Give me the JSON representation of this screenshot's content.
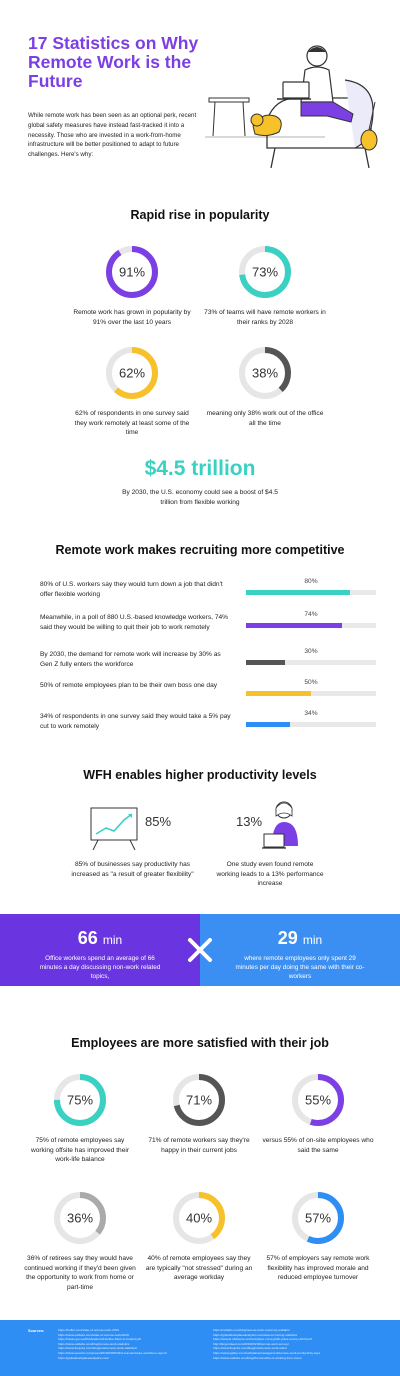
{
  "header": {
    "title": "17 Statistics on Why Remote Work is the Future",
    "intro": "While remote work has been seen as an optional perk, recent global safety measures have instead fast-tracked it into a necessity. Those who are invested in a work-from-home infrastructure will be better positioned to adapt to future challenges. Here's why:"
  },
  "colors": {
    "purple": "#7b3fe4",
    "teal": "#3ad1c2",
    "yellow": "#f6c12a",
    "gray": "#555555",
    "blue": "#2f8ef4",
    "track": "#e6e6e6"
  },
  "popularity": {
    "heading": "Rapid rise in popularity",
    "stats": [
      {
        "label": "91%",
        "value": 0.91,
        "color": "#7b3fe4",
        "caption": "Remote work has grown in popularity by 91% over the last 10 years"
      },
      {
        "label": "73%",
        "value": 0.73,
        "color": "#3ad1c2",
        "caption": "73% of teams will have remote workers in their ranks by 2028"
      },
      {
        "label": "62%",
        "value": 0.62,
        "color": "#f6c12a",
        "caption": "62% of respondents in one survey said they work remotely at least some of the time"
      },
      {
        "label": "38%",
        "value": 0.38,
        "color": "#555555",
        "caption": "meaning only 38% work out of the office all the time"
      }
    ],
    "big_number": "$4.5 trillion",
    "big_caption": "By 2030, the U.S. economy could see a boost of $4.5 trillion from flexible working"
  },
  "recruiting": {
    "heading": "Remote work makes recruiting more competitive",
    "bars": [
      {
        "text": "80% of U.S. workers say they would turn down a job that didn't offer flexible working",
        "label": "80%",
        "value": 0.8,
        "color": "#3ad1c2"
      },
      {
        "text": "Meanwhile, in a poll of 880 U.S.-based knowledge workers, 74% said they would be willing to quit their job to work remotely",
        "label": "74%",
        "value": 0.74,
        "color": "#7b3fe4"
      },
      {
        "text": "By 2030, the demand for remote work will increase by 30% as Gen Z fully enters the workforce",
        "label": "30%",
        "value": 0.3,
        "color": "#555555"
      },
      {
        "text": "50% of remote employees plan to be their own boss one day",
        "label": "50%",
        "value": 0.5,
        "color": "#f6c12a"
      },
      {
        "text": "34% of respondents in one survey said they would take a 5% pay cut to work remotely",
        "label": "34%",
        "value": 0.34,
        "color": "#2f8ef4"
      }
    ]
  },
  "productivity": {
    "heading": "WFH enables higher productivity levels",
    "left_pct": "85%",
    "left_caption": "85% of businesses say productivity has increased as \"a result of greater flexibility\"",
    "right_pct": "13%",
    "right_caption": "One study even found remote working leads to a 13% performance increase"
  },
  "band": {
    "left_num": "66",
    "left_unit": "min",
    "left_caption": "Office workers spend an average of 66 minutes a day discussing non-work related topics,",
    "right_num": "29",
    "right_unit": "min",
    "right_caption": "where remote employees only spent 29 minutes per day doing the same with their co-workers",
    "left_color": "#6a35e0",
    "right_color": "#3b8ff2"
  },
  "satisfaction": {
    "heading": "Employees are more satisfied with their job",
    "stats": [
      {
        "label": "75%",
        "value": 0.75,
        "color": "#3ad1c2",
        "caption": "75% of remote employees say working offsite has improved their work-life balance"
      },
      {
        "label": "71%",
        "value": 0.71,
        "color": "#555555",
        "caption": "71% of remote workers say they're happy in their current jobs"
      },
      {
        "label": "55%",
        "value": 0.55,
        "color": "#7b3fe4",
        "caption": "versus 55% of on-site employees who said the same"
      },
      {
        "label": "36%",
        "value": 0.36,
        "color": "#aaaaaa",
        "caption": "36% of retirees say they would have continued working if they'd been given the opportunity to work from home or part-time"
      },
      {
        "label": "40%",
        "value": 0.4,
        "color": "#f6c12a",
        "caption": "40% of remote employees say they are typically \"not stressed\" during an average workday"
      },
      {
        "label": "57%",
        "value": 0.57,
        "color": "#2f8ef4",
        "caption": "57% of employers say remote work flexibility has improved morale and reduced employee turnover"
      }
    ]
  },
  "sources": {
    "label": "Sources:",
    "left": [
      "https://buffer.com/state-of-remote-work-2019",
      "https://www.owllabs.com/state-of-remote-work/2019",
      "https://ideas.gov.au/Publications/Flexible-Work-in-Ireland.pdf",
      "https://www.owllabs.com/blog/remote-work-statistics",
      "https://www.flexjobs.com/blog/post/remote-work-statistics/",
      "https://www.upwork.com/press/2019/03/05/third-annual-future-workforce-report/",
      "https://globalworkplaceanalytics.com/"
    ],
    "right": [
      "https://owllabs.com/blog/remote-work-report-by-owllabs/",
      "https://globalworkplaceanalytics.com/telecommuting-statistics",
      "https://assets.ctfassets.net/workplace-survey/wfh-pulse-survey-2019.pdf",
      "http://blog.indeed.com/2019/03/18/remote-work-survey/",
      "https://www.flexjobs.com/blog/post/remote-work-stats/",
      "https://www.gallup.com/workplace/management/remote-work-productivity.aspx",
      "https://www.owllabs.com/blog/the-benefits-of-working-from-home"
    ]
  }
}
